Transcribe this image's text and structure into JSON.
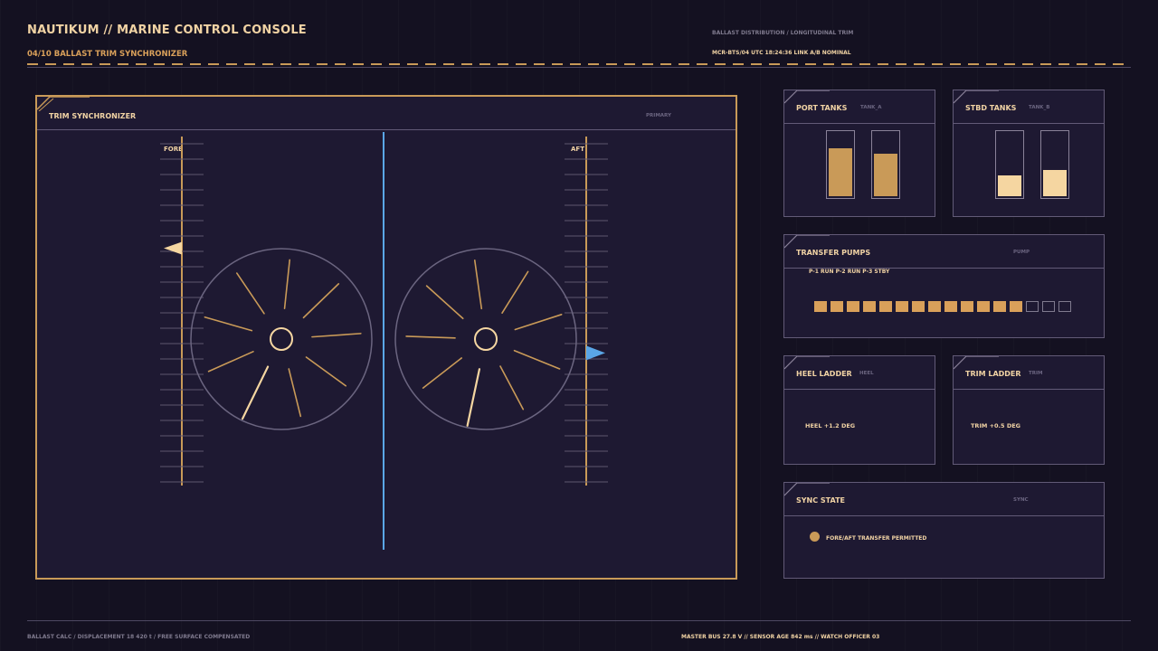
{
  "header": {
    "title": "NAUTIKUM // MARINE CONTROL CONSOLE",
    "subtitle": "04/10  BALLAST TRIM SYNCHRONIZER",
    "right_line1": "BALLAST DISTRIBUTION / LONGITUDINAL TRIM",
    "right_line2": "MCR-BTS/04  UTC 18:24:36  LINK A/B NOMINAL"
  },
  "footer": {
    "left": "BALLAST CALC / DISPLACEMENT 18 420 t / FREE SURFACE COMPENSATED",
    "right": "MASTER BUS 27.8 V  //  SENSOR AGE 842 ms  //  WATCH OFFICER 03"
  },
  "main": {
    "title": "TRIM SYNCHRONIZER",
    "code": "PRIMARY",
    "fore_label": "FORE",
    "aft_label": "AFT",
    "fore_marker_level": 0.68,
    "aft_marker_level": 0.38
  },
  "port_tanks": {
    "title": "PORT TANKS",
    "code": "TANK_A",
    "levels": [
      0.77,
      0.69
    ]
  },
  "stbd_tanks": {
    "title": "STBD TANKS",
    "code": "TANK_B",
    "levels": [
      0.37,
      0.44
    ]
  },
  "pumps": {
    "title": "TRANSFER PUMPS",
    "code": "PUMP",
    "status": "P-1 RUN  P-2 RUN  P-3 STBY",
    "segments_total": 16,
    "segments_active": 13
  },
  "heel": {
    "title": "HEEL LADDER",
    "code": "HEEL",
    "value": "HEEL +1.2 DEG"
  },
  "trim": {
    "title": "TRIM LADDER",
    "code": "TRIM",
    "value": "TRIM +0.5 DEG"
  },
  "sync": {
    "title": "SYNC STATE",
    "code": "SYNC",
    "status": "FORE/AFT TRANSFER PERMITTED"
  },
  "colors": {
    "accent": "#c99a58",
    "accent_light": "#f5d6a1",
    "blue": "#5aa6e6",
    "panel_bg": "#1e1932",
    "border": "#625a77"
  }
}
